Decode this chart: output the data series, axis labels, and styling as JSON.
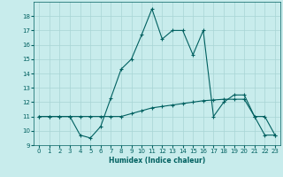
{
  "line1_x": [
    0,
    1,
    2,
    3,
    4,
    5,
    6,
    7,
    8,
    9,
    10,
    11,
    12,
    13,
    14,
    15,
    16,
    17,
    18,
    19,
    20,
    21,
    22,
    23
  ],
  "line1_y": [
    11,
    11,
    11,
    11,
    9.7,
    9.5,
    10.3,
    12.3,
    14.3,
    15.0,
    16.7,
    18.5,
    16.4,
    17.0,
    17.0,
    15.3,
    17.0,
    11.0,
    12.0,
    12.5,
    12.5,
    11.0,
    11.0,
    9.7
  ],
  "line2_x": [
    0,
    1,
    2,
    3,
    4,
    5,
    6,
    7,
    8,
    9,
    10,
    11,
    12,
    13,
    14,
    15,
    16,
    17,
    18,
    19,
    20,
    21,
    22,
    23
  ],
  "line2_y": [
    11,
    11,
    11,
    11,
    11,
    11,
    11,
    11,
    11,
    11.2,
    11.4,
    11.6,
    11.7,
    11.8,
    11.9,
    12.0,
    12.1,
    12.15,
    12.2,
    12.2,
    12.2,
    11.0,
    9.7,
    9.7
  ],
  "line_color": "#006060",
  "bg_color": "#c8ecec",
  "grid_color": "#a8d4d4",
  "xlabel": "Humidex (Indice chaleur)",
  "ylim": [
    9,
    19
  ],
  "xlim": [
    -0.5,
    23.5
  ],
  "yticks": [
    9,
    10,
    11,
    12,
    13,
    14,
    15,
    16,
    17,
    18
  ],
  "xticks": [
    0,
    1,
    2,
    3,
    4,
    5,
    6,
    7,
    8,
    9,
    10,
    11,
    12,
    13,
    14,
    15,
    16,
    17,
    18,
    19,
    20,
    21,
    22,
    23
  ],
  "xlabel_fontsize": 5.5,
  "tick_fontsize": 5.0
}
